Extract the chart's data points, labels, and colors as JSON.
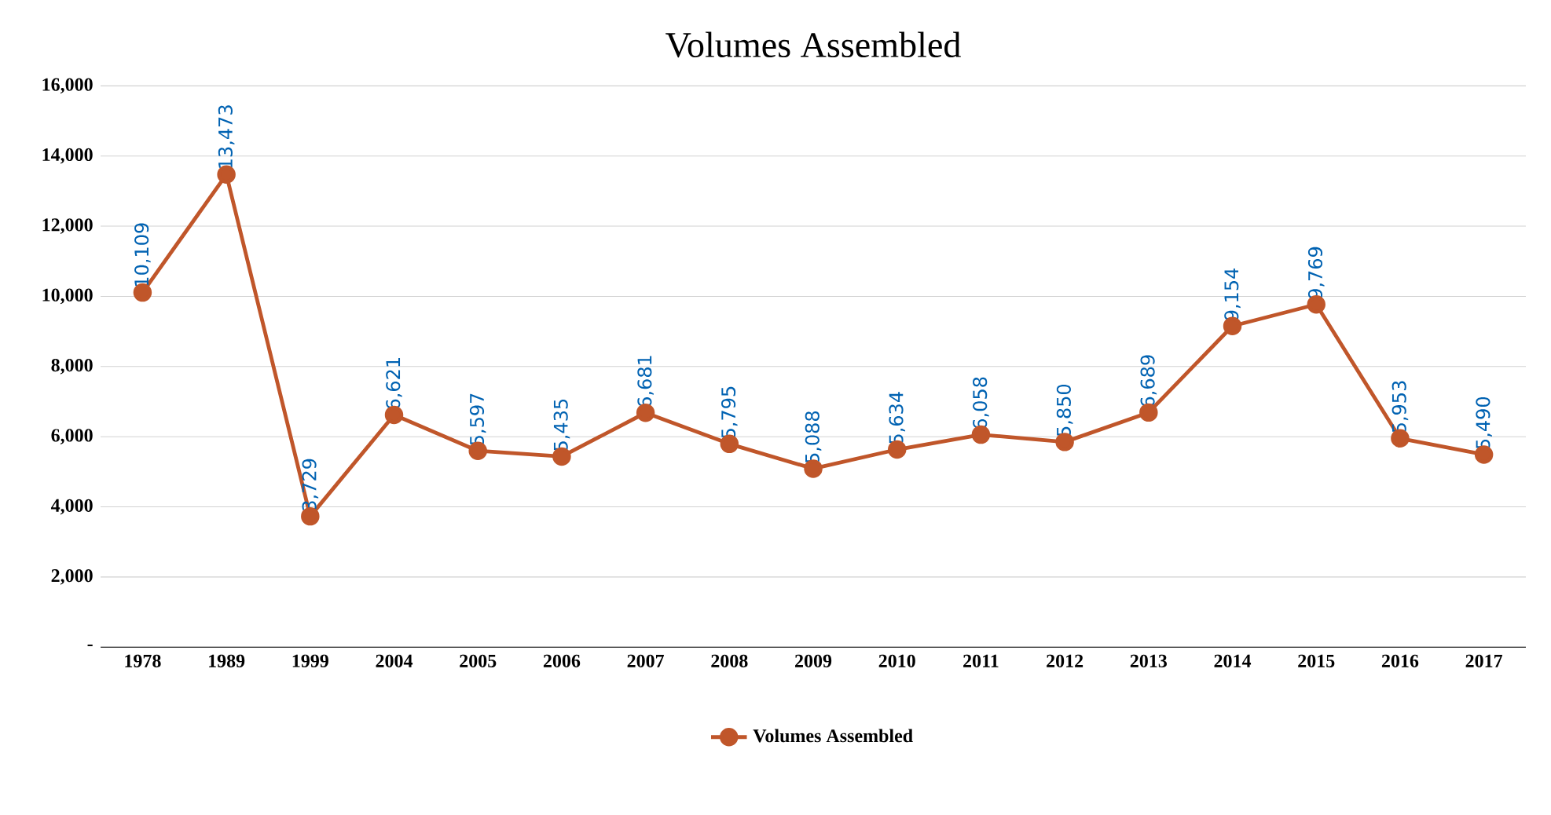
{
  "chart_data": {
    "type": "line",
    "title": "Volumes Assembled",
    "categories": [
      "1978",
      "1989",
      "1999",
      "2004",
      "2005",
      "2006",
      "2007",
      "2008",
      "2009",
      "2010",
      "2011",
      "2012",
      "2013",
      "2014",
      "2015",
      "2016",
      "2017"
    ],
    "series": [
      {
        "name": "Volumes Assembled",
        "color": "#c0562a",
        "values": [
          10109,
          13473,
          3729,
          6621,
          5597,
          5435,
          6681,
          5795,
          5088,
          5634,
          6058,
          5850,
          6689,
          9154,
          9769,
          5953,
          5490
        ],
        "value_labels": [
          "10,109",
          "13,473",
          "3,729",
          "6,621",
          "5,597",
          "5,435",
          "6,681",
          "5,795",
          "5,088",
          "5,634",
          "6,058",
          "5,850",
          "6,689",
          "9,154",
          "9,769",
          "5,953",
          "5,490"
        ]
      }
    ],
    "ylim": [
      0,
      16000
    ],
    "yticks": [
      {
        "value": 0,
        "label": "-"
      },
      {
        "value": 2000,
        "label": "2,000"
      },
      {
        "value": 4000,
        "label": "4,000"
      },
      {
        "value": 6000,
        "label": "6,000"
      },
      {
        "value": 8000,
        "label": "8,000"
      },
      {
        "value": 10000,
        "label": "10,000"
      },
      {
        "value": 12000,
        "label": "12,000"
      },
      {
        "value": 14000,
        "label": "14,000"
      },
      {
        "value": 16000,
        "label": "16,000"
      }
    ],
    "grid": "y",
    "legend": "bottom",
    "marker": "circle",
    "line_style": "solid"
  }
}
